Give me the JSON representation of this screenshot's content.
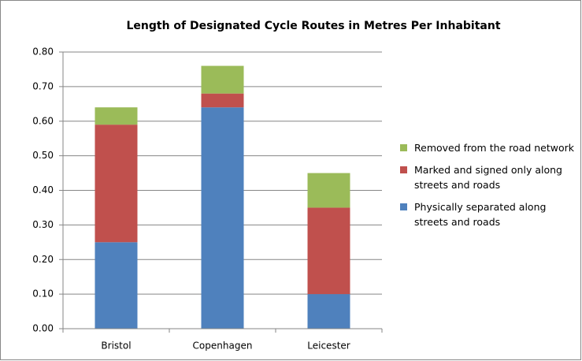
{
  "chart_data": {
    "type": "stacked-bar",
    "title": "Length of Designated Cycle Routes in Metres Per Inhabitant",
    "categories": [
      "Bristol",
      "Copenhagen",
      "Leicester"
    ],
    "series": [
      {
        "name": "Physically separated along streets and roads",
        "color": "#4f81bd",
        "values": [
          0.25,
          0.64,
          0.1
        ]
      },
      {
        "name": "Marked and signed only along streets and roads",
        "color": "#c0504d",
        "values": [
          0.34,
          0.04,
          0.25
        ]
      },
      {
        "name": "Removed from the road network",
        "color": "#9bbb59",
        "values": [
          0.05,
          0.08,
          0.1
        ]
      }
    ],
    "ylim": [
      0,
      0.8
    ],
    "yticks": [
      {
        "value": 0,
        "label": "0.00"
      },
      {
        "value": 0.1,
        "label": "0.10"
      },
      {
        "value": 0.2,
        "label": "0.20"
      },
      {
        "value": 0.3,
        "label": "0.30"
      },
      {
        "value": 0.4,
        "label": "0.40"
      },
      {
        "value": 0.5,
        "label": "0.50"
      },
      {
        "value": 0.6,
        "label": "0.60"
      },
      {
        "value": 0.7,
        "label": "0.70"
      },
      {
        "value": 0.8,
        "label": "0.80"
      }
    ],
    "grid": true,
    "legend": "right"
  }
}
